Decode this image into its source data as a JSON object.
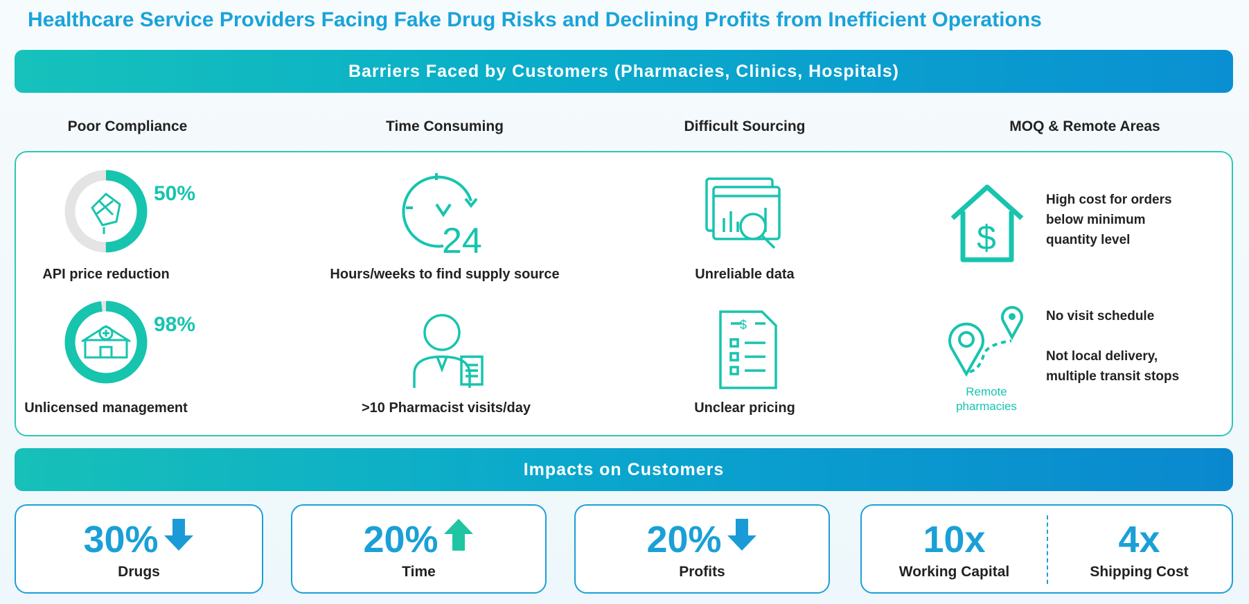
{
  "title": "Healthcare Service Providers Facing Fake Drug Risks and Declining Profits from Inefficient Operations",
  "barriers": {
    "banner": "Barriers Faced by Customers (Pharmacies, Clinics, Hospitals)",
    "columns": [
      "Poor Compliance",
      "Time Consuming",
      "Difficult Sourcing",
      "MOQ & Remote Areas"
    ],
    "compliance": [
      {
        "value": "50%",
        "fraction": 0.5,
        "label": "API price reduction",
        "icon": "pills-icon"
      },
      {
        "value": "98%",
        "fraction": 0.98,
        "label": "Unlicensed management",
        "icon": "clinic-icon"
      }
    ],
    "time": [
      {
        "label": "Hours/weeks to find supply source",
        "icon": "clock-24-icon"
      },
      {
        "label": ">10 Pharmacist visits/day",
        "icon": "pharmacist-icon"
      }
    ],
    "sourcing": [
      {
        "label": "Unreliable data",
        "icon": "data-search-icon"
      },
      {
        "label": "Unclear pricing",
        "icon": "price-list-icon"
      }
    ],
    "moq": {
      "text_lines": [
        "High cost for orders",
        "below minimum",
        "quantity level"
      ],
      "icon": "house-dollar-icon"
    },
    "remote": {
      "icon_caption_lines": [
        "Remote",
        "pharmacies"
      ],
      "text1": "No visit schedule",
      "text2_lines": [
        "Not local delivery,",
        "multiple transit stops"
      ],
      "icon": "map-pins-icon"
    }
  },
  "impacts": {
    "banner": "Impacts on Customers",
    "items": [
      {
        "value": "30%",
        "direction": "down",
        "label": "Drugs"
      },
      {
        "value": "20%",
        "direction": "up",
        "label": "Time"
      },
      {
        "value": "20%",
        "direction": "down",
        "label": "Profits"
      }
    ],
    "combined": [
      {
        "value": "10x",
        "label": "Working Capital"
      },
      {
        "value": "4x",
        "label": "Shipping Cost"
      }
    ]
  },
  "colors": {
    "teal": "#17c4ae",
    "blue": "#1aa0d6",
    "up_arrow": "#1fc4a2",
    "down_arrow": "#1a9bd8"
  }
}
